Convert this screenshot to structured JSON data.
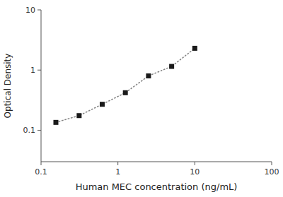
{
  "chart_data": {
    "type": "line",
    "x": [
      0.156,
      0.313,
      0.625,
      1.25,
      2.5,
      5.0,
      10.0
    ],
    "values": [
      0.135,
      0.175,
      0.27,
      0.42,
      0.8,
      1.15,
      2.3
    ],
    "xlabel": "Human MEC concentration (ng/mL)",
    "ylabel": "Optical Density",
    "xlim": [
      0.1,
      100
    ],
    "ylim": [
      0.03,
      10
    ],
    "xticks": [
      0.1,
      1,
      10,
      100
    ],
    "yticks": [
      0.1,
      1,
      10
    ],
    "log": true,
    "grid": false,
    "color": "#1a1a1a",
    "marker": "square",
    "line_style": "dotted"
  }
}
